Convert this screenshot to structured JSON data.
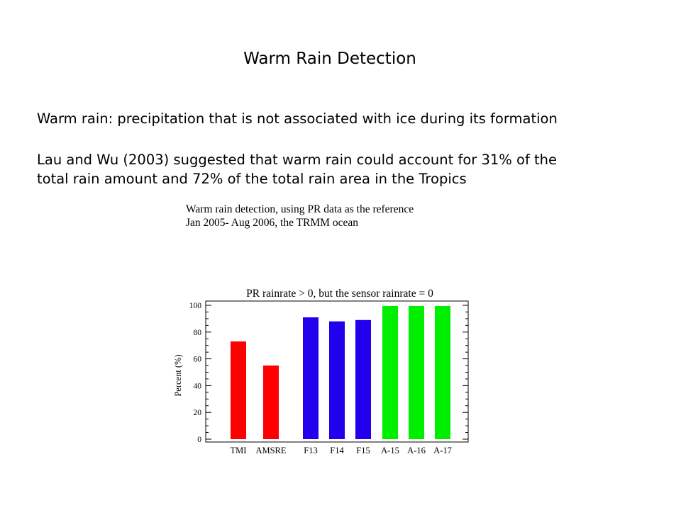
{
  "slide": {
    "title": "Warm Rain Detection",
    "paragraph1": "Warm rain: precipitation that is not associated with ice during its formation",
    "paragraph2_line1": "Lau and Wu (2003) suggested that warm rain could account for 31% of the",
    "paragraph2_line2": "total rain amount and 72% of the total rain area in the Tropics"
  },
  "figure": {
    "caption_line1": "Warm rain detection, using PR data as the reference",
    "caption_line2": "Jan 2005- Aug 2006, the TRMM ocean"
  },
  "chart_data": {
    "type": "bar",
    "title": "PR rainrate > 0, but the sensor rainrate = 0",
    "ylabel": "Percent (%)",
    "xlabel": "",
    "ylim": [
      0,
      100
    ],
    "yticks": [
      0,
      20,
      40,
      60,
      80,
      100
    ],
    "categories": [
      "TMI",
      "AMSRE",
      "F13",
      "F14",
      "F15",
      "A-15",
      "A-16",
      "A-17"
    ],
    "values": [
      73,
      55,
      91,
      88,
      89,
      99.5,
      99.5,
      99.5
    ],
    "colors": [
      "#ff0000",
      "#ff0000",
      "#2200ee",
      "#2200ee",
      "#2200ee",
      "#00ee00",
      "#00ee00",
      "#00ee00"
    ],
    "grid": false,
    "legend": "none"
  }
}
